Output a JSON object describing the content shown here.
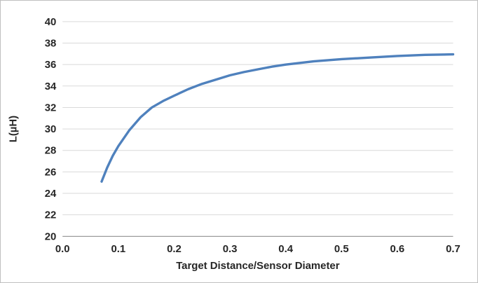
{
  "chart_data": {
    "type": "line",
    "title": "",
    "xlabel": "Target Distance/Sensor Diameter",
    "ylabel": "L(µH)",
    "xlim": [
      0.0,
      0.7
    ],
    "ylim": [
      20,
      40
    ],
    "x_ticks": [
      "0.0",
      "0.1",
      "0.2",
      "0.3",
      "0.4",
      "0.5",
      "0.6",
      "0.7"
    ],
    "y_ticks": [
      20,
      22,
      24,
      26,
      28,
      30,
      32,
      34,
      36,
      38,
      40
    ],
    "grid": "horizontal",
    "legend": "none",
    "colors": {
      "line": "#4F81BD",
      "gridline": "#D9D9D9",
      "axis": "#8C8C8C",
      "text": "#262626",
      "border": "#BFBFBF"
    },
    "series": [
      {
        "name": "L",
        "color": "#4F81BD",
        "x": [
          0.07,
          0.08,
          0.09,
          0.1,
          0.12,
          0.14,
          0.16,
          0.18,
          0.2,
          0.225,
          0.25,
          0.275,
          0.3,
          0.325,
          0.35,
          0.375,
          0.4,
          0.45,
          0.5,
          0.55,
          0.6,
          0.65,
          0.7
        ],
        "y": [
          25.1,
          26.4,
          27.5,
          28.4,
          29.9,
          31.1,
          32.0,
          32.6,
          33.1,
          33.7,
          34.2,
          34.6,
          35.0,
          35.3,
          35.55,
          35.8,
          36.0,
          36.3,
          36.5,
          36.65,
          36.8,
          36.9,
          36.95
        ]
      }
    ]
  }
}
